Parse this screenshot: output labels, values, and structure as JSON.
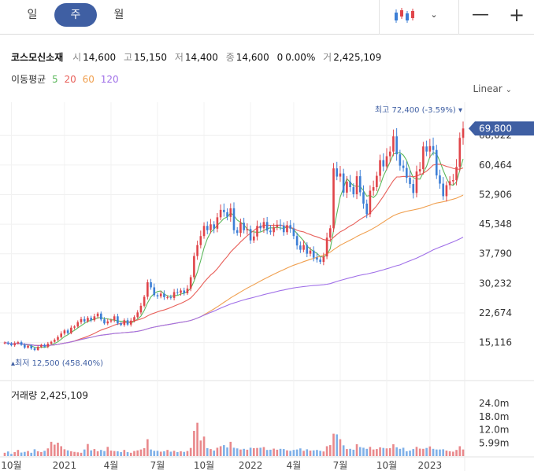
{
  "periods": [
    {
      "label": "일",
      "active": false
    },
    {
      "label": "주",
      "active": true
    },
    {
      "label": "월",
      "active": false
    }
  ],
  "toolbar": {
    "chart_type_icon": "candlestick-icon",
    "dropdown_icon": "chevron-down-icon",
    "zoom_out_icon": "minus-icon",
    "zoom_in_icon": "plus-icon"
  },
  "info": {
    "name": "코스모신소재",
    "open_label": "시",
    "open": "14,600",
    "high_label": "고",
    "high": "15,150",
    "low_label": "저",
    "low": "14,400",
    "close_label": "종",
    "close": "14,600",
    "change": "0",
    "change_pct": "0.00%",
    "volume_label": "거",
    "volume": "2,425,109"
  },
  "ma": {
    "label": "이동평균",
    "periods": [
      "5",
      "20",
      "60",
      "120"
    ],
    "colors": [
      "#5cb85c",
      "#e8605a",
      "#f0a050",
      "#a070e8"
    ]
  },
  "scale_mode": "Linear",
  "volume_pane": {
    "label": "거래량",
    "value": "2,425,109"
  },
  "colors": {
    "up": "#e0454a",
    "down": "#3d7fd6",
    "accent": "#3f5fa3"
  },
  "chart_data": {
    "type": "candlestick",
    "x_ticks": [
      "10월",
      "2021",
      "4월",
      "7월",
      "10월",
      "2022",
      "4월",
      "7월",
      "10월",
      "2023"
    ],
    "y_ticks": [
      15116,
      22674,
      30232,
      37790,
      45348,
      52906,
      60464,
      68022
    ],
    "y_tick_labels": [
      "15,116",
      "22,674",
      "30,232",
      "37,790",
      "45,348",
      "52,906",
      "60,464",
      "68,022"
    ],
    "ylim": [
      8600,
      76500
    ],
    "current_price": {
      "value": 69800,
      "label": "69,800"
    },
    "max_marker": {
      "label": "최고",
      "value": "72,400",
      "pct": "(-3.59%)"
    },
    "min_marker": {
      "label": "최저",
      "value": "12,500",
      "pct": "(458.40%)"
    },
    "volume_ticks": [
      "24.0m",
      "18.0m",
      "12.0m",
      "5.99m"
    ],
    "volume_tick_values": [
      24.0,
      18.0,
      12.0,
      5.99
    ],
    "volume_ylim": [
      0,
      28
    ],
    "series": {
      "close": [
        15100,
        14800,
        14400,
        14900,
        15200,
        14500,
        13800,
        14300,
        13600,
        13200,
        14000,
        14500,
        14000,
        14800,
        15300,
        15800,
        16500,
        17400,
        18200,
        17500,
        18900,
        19200,
        20300,
        21100,
        20500,
        21400,
        20800,
        21800,
        22500,
        21000,
        20000,
        20500,
        20800,
        21800,
        20000,
        19600,
        20800,
        19700,
        20700,
        21600,
        22800,
        24500,
        26800,
        30500,
        29200,
        27200,
        26900,
        27600,
        26700,
        26700,
        26500,
        28000,
        27800,
        28400,
        27700,
        28900,
        31800,
        37200,
        40000,
        42300,
        44900,
        43800,
        45300,
        44200,
        47100,
        49000,
        48400,
        47200,
        49400,
        43800,
        43100,
        45700,
        43800,
        44100,
        41200,
        42200,
        44900,
        44300,
        45900,
        43700,
        43300,
        44600,
        45200,
        45000,
        43300,
        45100,
        44200,
        42300,
        39900,
        38800,
        40000,
        37800,
        38600,
        36800,
        36300,
        35700,
        37100,
        41900,
        44300,
        59600,
        57500,
        58300,
        53400,
        56200,
        54800,
        53000,
        57600,
        53500,
        50600,
        47900,
        53900,
        54800,
        57700,
        61700,
        60100,
        62700,
        63900,
        67800,
        63200,
        60300,
        59700,
        57200,
        55600,
        53300,
        58800,
        59400,
        65200,
        63900,
        65300,
        64300,
        57800,
        55700,
        52500,
        55300,
        56300,
        56600,
        60000,
        67400,
        69800
      ],
      "volume": [
        1.5,
        2.1,
        1.0,
        1.8,
        2.8,
        1.6,
        1.9,
        2.3,
        1.5,
        3.1,
        2.2,
        1.8,
        2.4,
        3.5,
        6.5,
        5.2,
        6.1,
        4.5,
        3.1,
        2.6,
        2.2,
        1.9,
        1.7,
        1.5,
        3.0,
        5.5,
        2.6,
        3.2,
        2.2,
        2.8,
        2.3,
        4.2,
        2.5,
        2.3,
        2.2,
        1.8,
        2.8,
        1.8,
        1.5,
        2.3,
        2.6,
        3.0,
        3.6,
        7.7,
        3.0,
        2.4,
        2.4,
        2.0,
        2.2,
        2.8,
        2.0,
        2.4,
        1.8,
        2.2,
        1.9,
        2.3,
        3.7,
        11.5,
        15.2,
        7.1,
        8.9,
        3.6,
        3.2,
        2.5,
        3.8,
        4.5,
        5.0,
        3.9,
        6.5,
        3.8,
        3.5,
        3.0,
        3.3,
        2.9,
        3.8,
        3.6,
        3.7,
        3.8,
        4.1,
        2.8,
        2.9,
        3.4,
        2.9,
        3.3,
        3.2,
        2.6,
        2.4,
        2.8,
        3.0,
        3.5,
        2.4,
        3.1,
        2.5,
        2.6,
        2.8,
        2.4,
        2.1,
        4.5,
        5.0,
        10.2,
        9.9,
        7.7,
        4.9,
        3.2,
        3.3,
        2.9,
        5.4,
        4.1,
        3.8,
        3.3,
        4.2,
        3.0,
        3.2,
        4.0,
        3.7,
        3.5,
        3.6,
        5.4,
        4.0,
        3.3,
        3.8,
        2.2,
        2.5,
        3.2,
        4.2,
        3.4,
        3.3,
        3.7,
        4.4,
        3.3,
        3.0,
        3.0,
        3.1,
        2.5,
        2.2,
        2.0,
        2.8,
        4.5,
        3.0
      ]
    }
  }
}
